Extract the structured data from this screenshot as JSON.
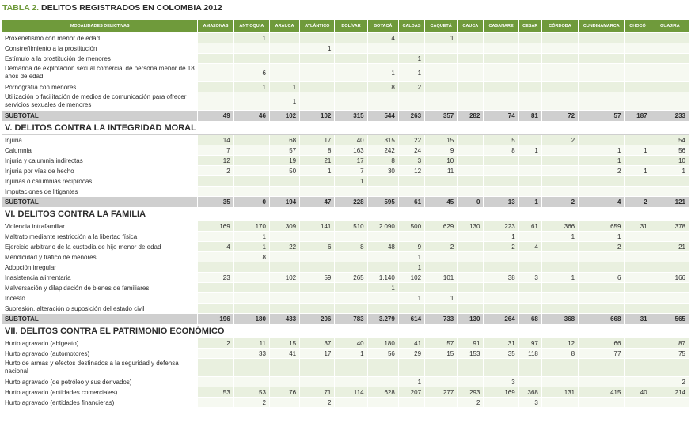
{
  "title": {
    "label": "TABLA 2.",
    "text": "DELITOS REGISTRADOS EN COLOMBIA 2012"
  },
  "columns": [
    "MODALIDADES DELICTIVAS",
    "AMAZONAS",
    "ANTIOQUIA",
    "ARAUCA",
    "ATLÁNTICO",
    "BOLÍVAR",
    "BOYACÁ",
    "CALDAS",
    "CAQUETÁ",
    "CAUCA",
    "CASANARE",
    "CESAR",
    "CÓRDOBA",
    "CUNDINAMARCA",
    "CHOCÓ",
    "GUAJIRA"
  ],
  "rows": [
    {
      "type": "data",
      "label": "Proxenetismo con menor de edad",
      "values": [
        "",
        "1",
        "",
        "",
        "",
        "4",
        "",
        "1",
        "",
        "",
        "",
        "",
        "",
        "",
        ""
      ]
    },
    {
      "type": "data",
      "label": "Constreñimiento a la prostitución",
      "values": [
        "",
        "",
        "",
        "1",
        "",
        "",
        "",
        "",
        "",
        "",
        "",
        "",
        "",
        "",
        ""
      ]
    },
    {
      "type": "data",
      "label": "Estímulo a la prostitución de menores",
      "values": [
        "",
        "",
        "",
        "",
        "",
        "",
        "1",
        "",
        "",
        "",
        "",
        "",
        "",
        "",
        ""
      ]
    },
    {
      "type": "data",
      "tall": true,
      "label": "Demanda de explotacion sexual comercial de persona menor de 18 años de edad",
      "values": [
        "",
        "6",
        "",
        "",
        "",
        "1",
        "1",
        "",
        "",
        "",
        "",
        "",
        "",
        "",
        ""
      ]
    },
    {
      "type": "data",
      "label": "Pornografía con menores",
      "values": [
        "",
        "1",
        "1",
        "",
        "",
        "8",
        "2",
        "",
        "",
        "",
        "",
        "",
        "",
        "",
        ""
      ]
    },
    {
      "type": "data",
      "tall": true,
      "label": "Utilización o facilitación de medios de comunicación para ofrecer servicios sexuales de menores",
      "values": [
        "",
        "",
        "1",
        "",
        "",
        "",
        "",
        "",
        "",
        "",
        "",
        "",
        "",
        "",
        ""
      ]
    },
    {
      "type": "subtotal",
      "label": "SUBTOTAL",
      "values": [
        "49",
        "46",
        "102",
        "102",
        "315",
        "544",
        "263",
        "357",
        "282",
        "74",
        "81",
        "72",
        "57",
        "187",
        "233"
      ]
    },
    {
      "type": "section",
      "label": "V. DELITOS CONTRA LA INTEGRIDAD MORAL"
    },
    {
      "type": "data",
      "label": "Injuria",
      "values": [
        "14",
        "",
        "68",
        "17",
        "40",
        "315",
        "22",
        "15",
        "",
        "5",
        "",
        "2",
        "",
        "",
        "54"
      ]
    },
    {
      "type": "data",
      "label": "Calumnia",
      "values": [
        "7",
        "",
        "57",
        "8",
        "163",
        "242",
        "24",
        "9",
        "",
        "8",
        "1",
        "",
        "1",
        "1",
        "56"
      ]
    },
    {
      "type": "data",
      "label": "Injuria y calumnia indirectas",
      "values": [
        "12",
        "",
        "19",
        "21",
        "17",
        "8",
        "3",
        "10",
        "",
        "",
        "",
        "",
        "1",
        "",
        "10"
      ]
    },
    {
      "type": "data",
      "label": "Injuria por vías de hecho",
      "values": [
        "2",
        "",
        "50",
        "1",
        "7",
        "30",
        "12",
        "11",
        "",
        "",
        "",
        "",
        "2",
        "1",
        "1"
      ]
    },
    {
      "type": "data",
      "label": "Injurias o calumnias recíprocas",
      "values": [
        "",
        "",
        "",
        "",
        "1",
        "",
        "",
        "",
        "",
        "",
        "",
        "",
        "",
        "",
        ""
      ]
    },
    {
      "type": "data",
      "label": "Imputaciones de litigantes",
      "values": [
        "",
        "",
        "",
        "",
        "",
        "",
        "",
        "",
        "",
        "",
        "",
        "",
        "",
        "",
        ""
      ]
    },
    {
      "type": "subtotal",
      "label": "SUBTOTAL",
      "values": [
        "35",
        "0",
        "194",
        "47",
        "228",
        "595",
        "61",
        "45",
        "0",
        "13",
        "1",
        "2",
        "4",
        "2",
        "121"
      ]
    },
    {
      "type": "section",
      "label": "VI. DELITOS CONTRA LA FAMILIA"
    },
    {
      "type": "data",
      "label": "Violencia intrafamiliar",
      "values": [
        "169",
        "170",
        "309",
        "141",
        "510",
        "2.090",
        "500",
        "629",
        "130",
        "223",
        "61",
        "366",
        "659",
        "31",
        "378"
      ]
    },
    {
      "type": "data",
      "label": "Maltrato mediante restricción a la libertad física",
      "values": [
        "",
        "1",
        "",
        "",
        "",
        "",
        "",
        "",
        "",
        "1",
        "",
        "1",
        "1",
        "",
        ""
      ]
    },
    {
      "type": "data",
      "label": "Ejercicio arbitrario de la custodia de hijo menor de edad",
      "values": [
        "4",
        "1",
        "22",
        "6",
        "8",
        "48",
        "9",
        "2",
        "",
        "2",
        "4",
        "",
        "2",
        "",
        "21"
      ]
    },
    {
      "type": "data",
      "label": "Mendicidad y tráfico de menores",
      "values": [
        "",
        "8",
        "",
        "",
        "",
        "",
        "1",
        "",
        "",
        "",
        "",
        "",
        "",
        "",
        ""
      ]
    },
    {
      "type": "data",
      "label": "Adopción irregular",
      "values": [
        "",
        "",
        "",
        "",
        "",
        "",
        "1",
        "",
        "",
        "",
        "",
        "",
        "",
        "",
        ""
      ]
    },
    {
      "type": "data",
      "label": "Inasistencia alimentaria",
      "values": [
        "23",
        "",
        "102",
        "59",
        "265",
        "1.140",
        "102",
        "101",
        "",
        "38",
        "3",
        "1",
        "6",
        "",
        "166"
      ]
    },
    {
      "type": "data",
      "label": "Malversación y dilapidación de bienes de familiares",
      "values": [
        "",
        "",
        "",
        "",
        "",
        "1",
        "",
        "",
        "",
        "",
        "",
        "",
        "",
        "",
        ""
      ]
    },
    {
      "type": "data",
      "label": "Incesto",
      "values": [
        "",
        "",
        "",
        "",
        "",
        "",
        "1",
        "1",
        "",
        "",
        "",
        "",
        "",
        "",
        ""
      ]
    },
    {
      "type": "data",
      "label": "Supresión, alteración o suposición del estado civil",
      "values": [
        "",
        "",
        "",
        "",
        "",
        "",
        "",
        "",
        "",
        "",
        "",
        "",
        "",
        "",
        ""
      ]
    },
    {
      "type": "subtotal",
      "label": "SUBTOTAL",
      "values": [
        "196",
        "180",
        "433",
        "206",
        "783",
        "3.279",
        "614",
        "733",
        "130",
        "264",
        "68",
        "368",
        "668",
        "31",
        "565"
      ]
    },
    {
      "type": "section",
      "label": "VII. DELITOS CONTRA EL PATRIMONIO ECONÓMICO"
    },
    {
      "type": "data",
      "label": "Hurto agravado (abigeato)",
      "values": [
        "2",
        "11",
        "15",
        "37",
        "40",
        "180",
        "41",
        "57",
        "91",
        "31",
        "97",
        "12",
        "66",
        "",
        "87"
      ]
    },
    {
      "type": "data",
      "label": "Hurto agravado (automotores)",
      "values": [
        "",
        "33",
        "41",
        "17",
        "1",
        "56",
        "29",
        "15",
        "153",
        "35",
        "118",
        "8",
        "77",
        "",
        "75"
      ]
    },
    {
      "type": "data",
      "tall": true,
      "label": "Hurto de armas y efectos destinados a la seguridad y defensa nacional",
      "values": [
        "",
        "",
        "",
        "",
        "",
        "",
        "",
        "",
        "",
        "",
        "",
        "",
        "",
        "",
        ""
      ]
    },
    {
      "type": "data",
      "label": "Hurto agravado (de petróleo y sus derivados)",
      "values": [
        "",
        "",
        "",
        "",
        "",
        "",
        "1",
        "",
        "",
        "3",
        "",
        "",
        "",
        "",
        "2"
      ]
    },
    {
      "type": "data",
      "label": "Hurto agravado (entidades comerciales)",
      "values": [
        "53",
        "53",
        "76",
        "71",
        "114",
        "628",
        "207",
        "277",
        "293",
        "169",
        "368",
        "131",
        "415",
        "40",
        "214"
      ]
    },
    {
      "type": "data",
      "label": "Hurto agravado (entidades financieras)",
      "values": [
        "",
        "2",
        "",
        "2",
        "",
        "",
        "",
        "",
        "2",
        "",
        "3",
        "",
        "",
        "",
        ""
      ]
    }
  ]
}
